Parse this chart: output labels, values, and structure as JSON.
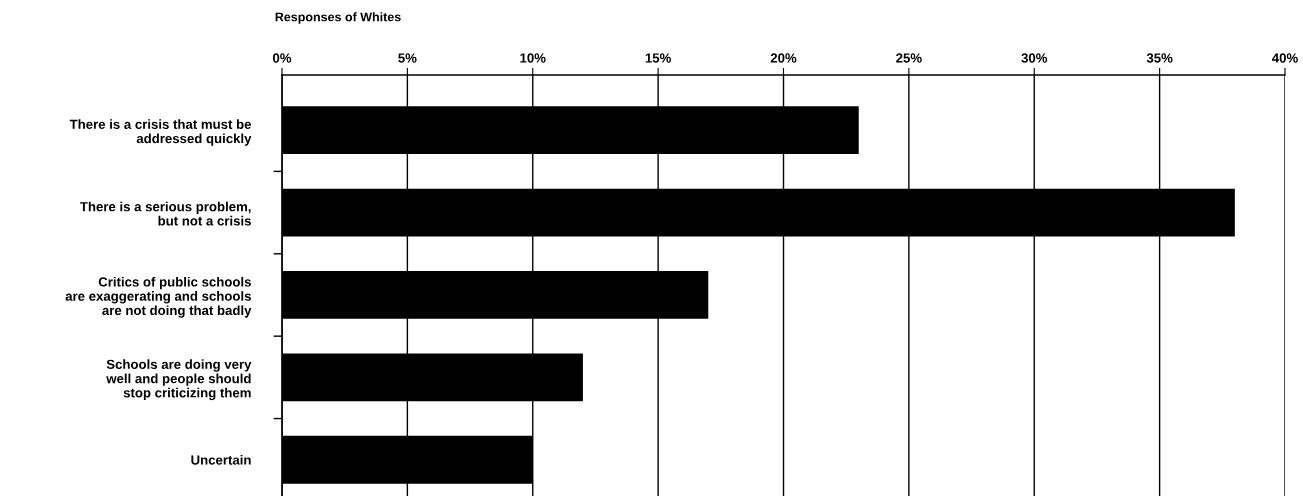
{
  "chart_data": {
    "type": "bar",
    "orientation": "horizontal",
    "title": "Responses of Whites",
    "categories": [
      "There is a crisis that must be\naddressed quickly",
      "There is a serious problem,\nbut not a crisis",
      "Critics of public schools\nare exaggerating and schools\nare not doing that badly",
      "Schools are doing very\nwell and people should\nstop criticizing them",
      "Uncertain"
    ],
    "values": [
      23,
      38,
      17,
      12,
      10
    ],
    "color": "#000000",
    "xlim": [
      0,
      40
    ],
    "xticks": [
      {
        "value": 0,
        "label": "0%"
      },
      {
        "value": 5,
        "label": "5%"
      },
      {
        "value": 10,
        "label": "10%"
      },
      {
        "value": 15,
        "label": "15%"
      },
      {
        "value": 20,
        "label": "20%"
      },
      {
        "value": 25,
        "label": "25%"
      },
      {
        "value": 30,
        "label": "30%"
      },
      {
        "value": 35,
        "label": "35%"
      },
      {
        "value": 40,
        "label": "40%"
      }
    ],
    "grid": "x",
    "legend": false
  }
}
